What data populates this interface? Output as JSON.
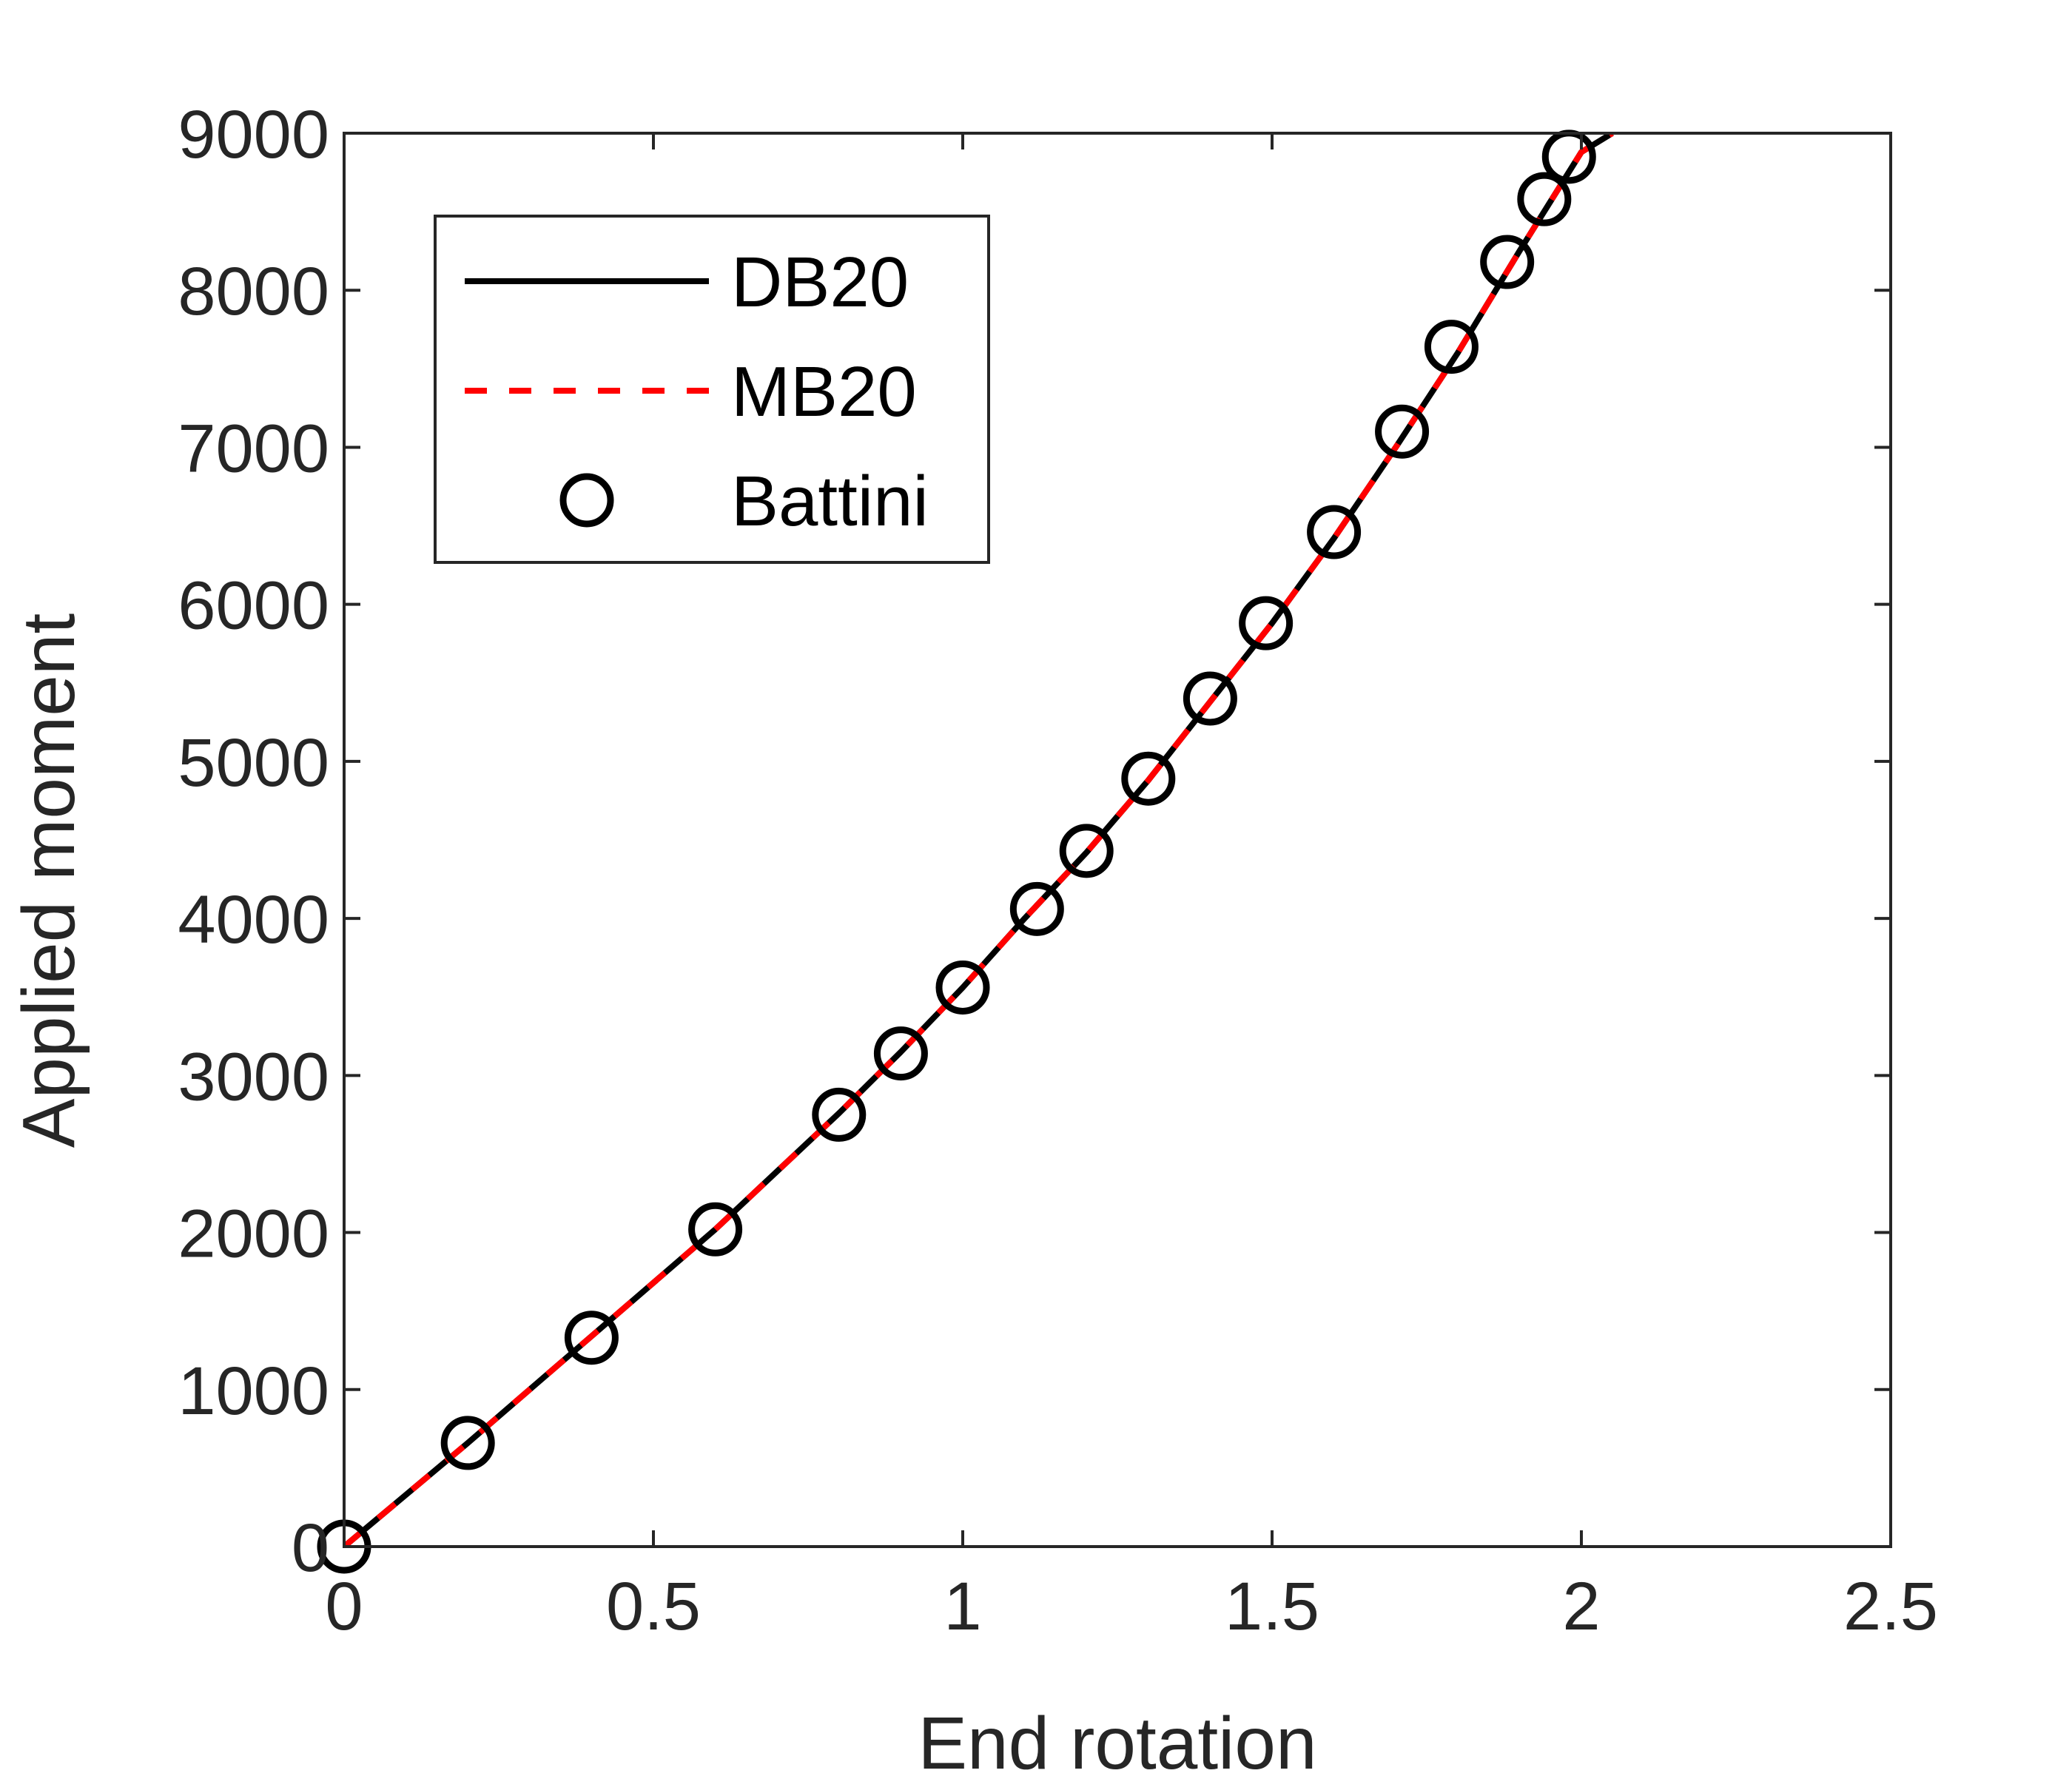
{
  "chart_data": {
    "type": "line",
    "xlabel": "End rotation",
    "ylabel": "Applied moment",
    "xlim": [
      0,
      2.5
    ],
    "ylim": [
      0,
      9000
    ],
    "grid": false,
    "legend_position": "top-left",
    "x_ticks": [
      {
        "value": 0,
        "label": "0"
      },
      {
        "value": 0.5,
        "label": "0.5"
      },
      {
        "value": 1,
        "label": "1"
      },
      {
        "value": 1.5,
        "label": "1.5"
      },
      {
        "value": 2,
        "label": "2"
      },
      {
        "value": 2.5,
        "label": "2.5"
      }
    ],
    "y_ticks": [
      {
        "value": 0,
        "label": "0"
      },
      {
        "value": 1000,
        "label": "1000"
      },
      {
        "value": 2000,
        "label": "2000"
      },
      {
        "value": 3000,
        "label": "3000"
      },
      {
        "value": 4000,
        "label": "4000"
      },
      {
        "value": 5000,
        "label": "5000"
      },
      {
        "value": 6000,
        "label": "6000"
      },
      {
        "value": 7000,
        "label": "7000"
      },
      {
        "value": 8000,
        "label": "8000"
      },
      {
        "value": 9000,
        "label": "9000"
      }
    ],
    "series": [
      {
        "name": "DB20",
        "style": "solid",
        "color": "#000000",
        "x": [
          0,
          0.2,
          0.4,
          0.6,
          0.8,
          0.9,
          1.0,
          1.1,
          1.2,
          1.3,
          1.4,
          1.5,
          1.6,
          1.7,
          1.8,
          1.9,
          2.0,
          2.05
        ],
        "y": [
          0,
          660,
          1340,
          2020,
          2760,
          3150,
          3560,
          4000,
          4420,
          4880,
          5380,
          5880,
          6420,
          7000,
          7600,
          8250,
          8880,
          9000
        ]
      },
      {
        "name": "MB20",
        "style": "dashed",
        "color": "#ff0000",
        "x": [
          0,
          0.2,
          0.4,
          0.6,
          0.8,
          0.9,
          1.0,
          1.1,
          1.2,
          1.3,
          1.4,
          1.5,
          1.6,
          1.7,
          1.8,
          1.9,
          2.0,
          2.05
        ],
        "y": [
          0,
          660,
          1340,
          2020,
          2760,
          3150,
          3560,
          4000,
          4420,
          4880,
          5380,
          5880,
          6420,
          7000,
          7600,
          8250,
          8880,
          9000
        ]
      },
      {
        "name": "Battini",
        "style": "markers",
        "marker": "circle",
        "color": "#000000",
        "x": [
          0,
          0.2,
          0.4,
          0.6,
          0.8,
          0.9,
          1.0,
          1.12,
          1.2,
          1.3,
          1.4,
          1.49,
          1.6,
          1.71,
          1.79,
          1.88,
          1.94,
          1.98
        ],
        "y": [
          0,
          660,
          1330,
          2020,
          2750,
          3140,
          3560,
          4060,
          4430,
          4890,
          5400,
          5880,
          6460,
          7100,
          7640,
          8180,
          8580,
          8850
        ]
      }
    ]
  }
}
